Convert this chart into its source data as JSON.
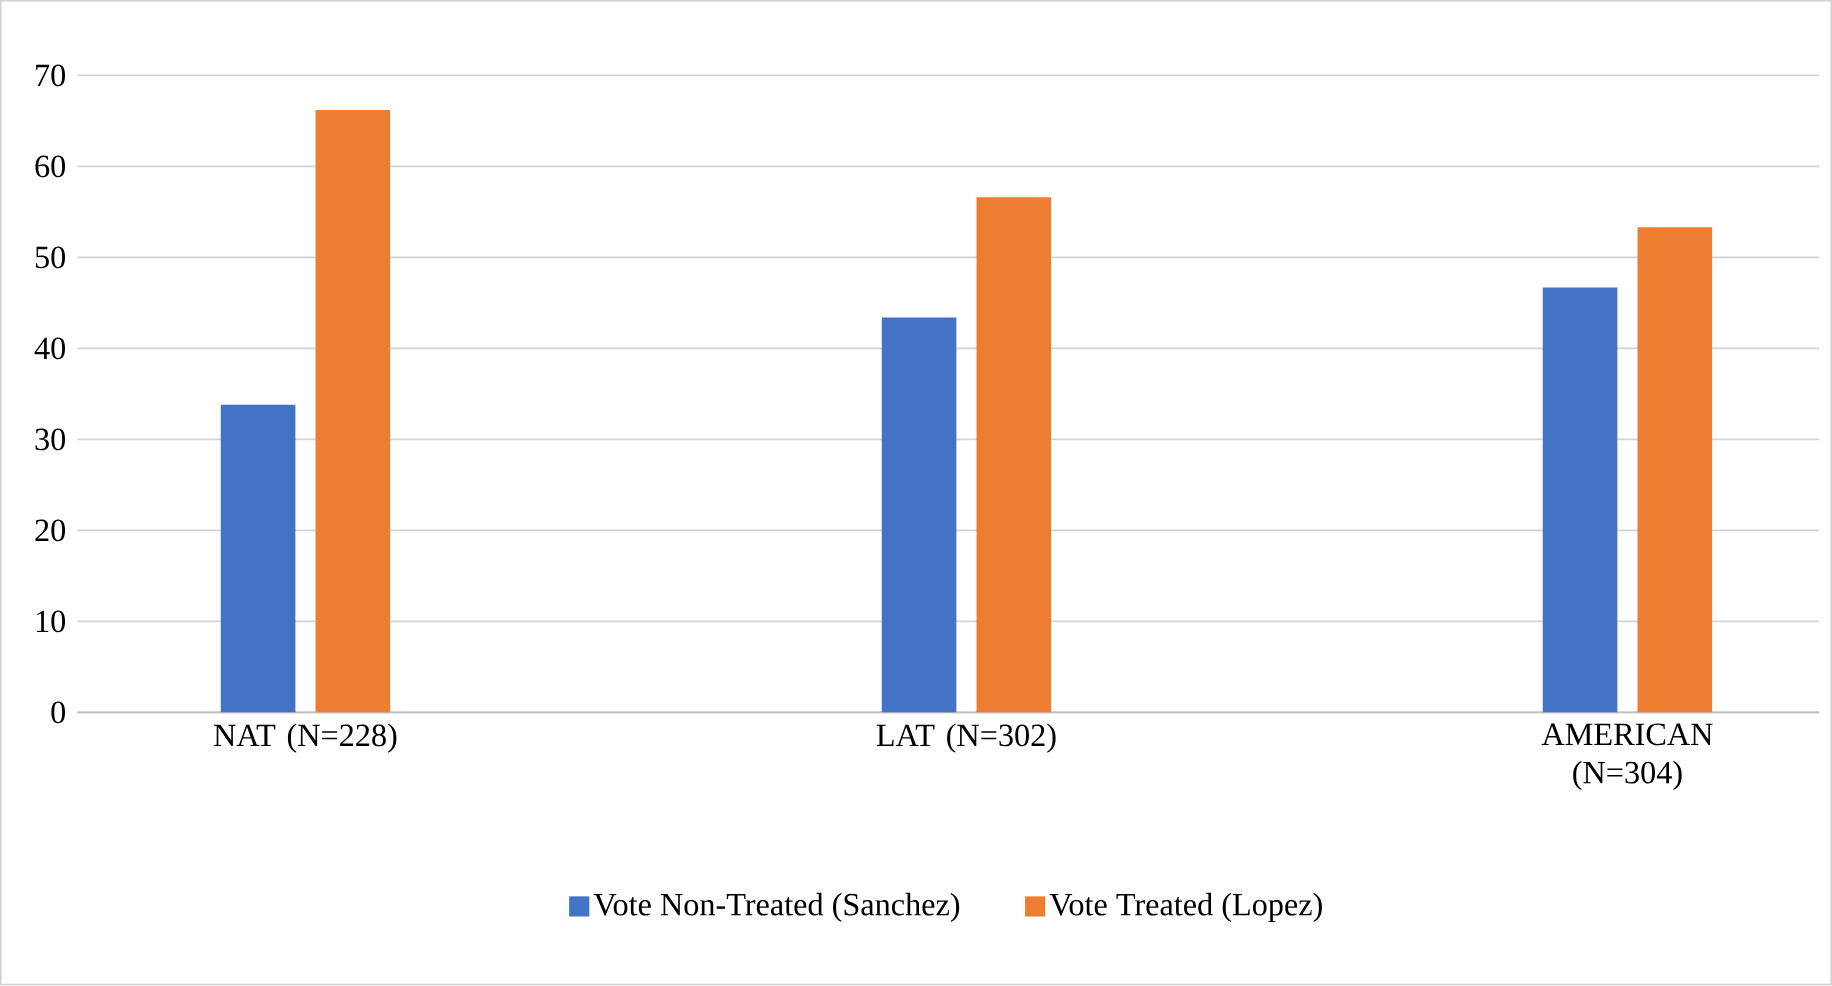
{
  "chart_data": {
    "type": "bar",
    "categories": [
      "NAT (N=228)",
      "LAT (N=302)",
      "AMERICAN (N=304)"
    ],
    "series": [
      {
        "name": "Vote Non-Treated (Sanchez)",
        "color": "#4472c4",
        "values": [
          33.8,
          43.4,
          46.7
        ]
      },
      {
        "name": "Vote Treated (Lopez)",
        "color": "#ed7d31",
        "values": [
          66.2,
          56.6,
          53.3
        ]
      }
    ],
    "ylim": [
      0,
      70
    ],
    "yticks": [
      0,
      10,
      20,
      30,
      40,
      50,
      60,
      70
    ],
    "grid": "y",
    "legend": "bottom"
  }
}
